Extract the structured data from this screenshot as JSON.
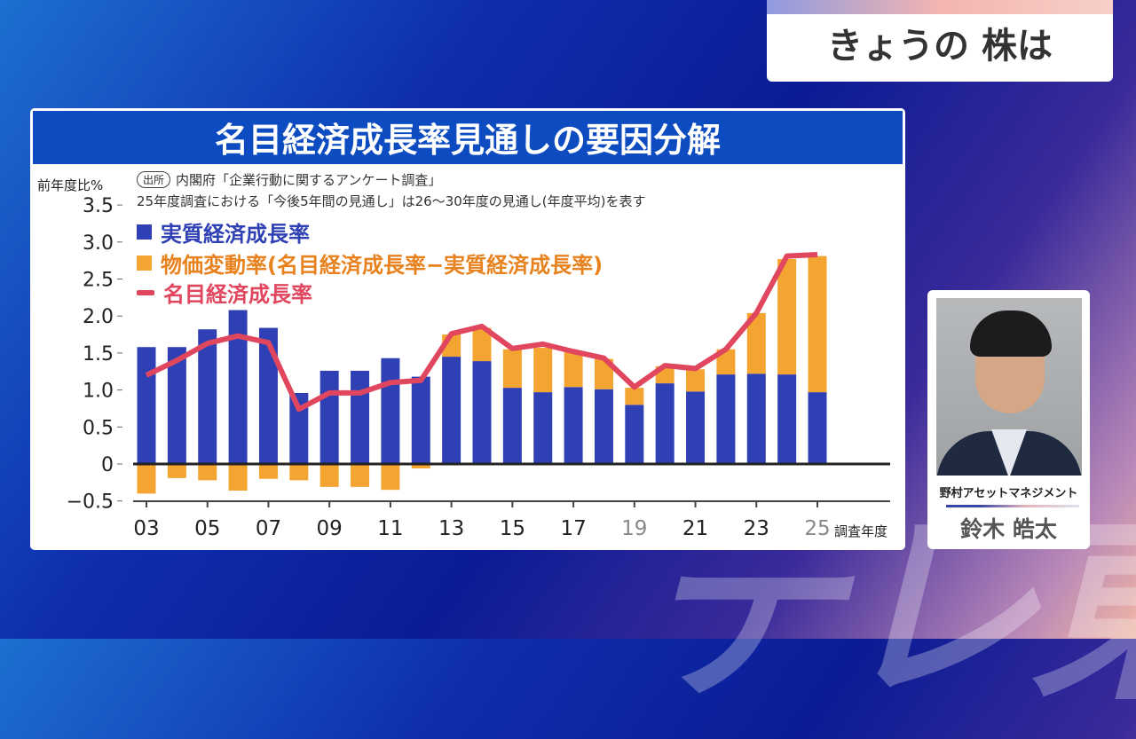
{
  "header": {
    "program": "きょうの 株は"
  },
  "watermark": "テレ東",
  "person": {
    "company": "野村アセットマネジメント",
    "name": "鈴木 皓太"
  },
  "chart_data": {
    "type": "bar",
    "title": "名目経済成長率見通しの要因分解",
    "ylabel": "前年度比%",
    "xlabel": "調査年度",
    "source_badge": "出所",
    "source": "内閣府「企業行動に関するアンケート調査」",
    "note": "25年度調査における「今後5年間の見通し」は26〜30年度の見通し(年度平均)を表す",
    "ylim": [
      -0.5,
      3.5
    ],
    "yticks": [
      "3.5",
      "3.0",
      "2.5",
      "2.0",
      "1.5",
      "1.0",
      "0.5",
      "0",
      "−0.5"
    ],
    "ytick_values": [
      3.5,
      3.0,
      2.5,
      2.0,
      1.5,
      1.0,
      0.5,
      0,
      -0.5
    ],
    "categories": [
      "03",
      "04",
      "05",
      "06",
      "07",
      "08",
      "09",
      "10",
      "11",
      "12",
      "13",
      "14",
      "15",
      "16",
      "17",
      "18",
      "19",
      "20",
      "21",
      "22",
      "23",
      "24",
      "25"
    ],
    "xtick_labels": [
      "03",
      "05",
      "07",
      "09",
      "11",
      "13",
      "15",
      "17",
      "19",
      "21",
      "23",
      "25"
    ],
    "series": [
      {
        "name": "実質経済成長率",
        "type": "bar",
        "color": "#2f40b4",
        "values": [
          1.58,
          1.58,
          1.82,
          2.08,
          1.84,
          0.96,
          1.26,
          1.26,
          1.43,
          1.18,
          1.45,
          1.39,
          1.03,
          0.97,
          1.04,
          1.01,
          0.8,
          1.09,
          0.98,
          1.21,
          1.22,
          1.21,
          0.97
        ]
      },
      {
        "name": "物価変動率(名目経済成長率−実質経済成長率)",
        "type": "bar",
        "color": "#f4a431",
        "values": [
          -0.4,
          -0.19,
          -0.22,
          -0.36,
          -0.2,
          -0.22,
          -0.31,
          -0.31,
          -0.35,
          -0.06,
          0.3,
          0.45,
          0.52,
          0.6,
          0.47,
          0.41,
          0.23,
          0.23,
          0.3,
          0.34,
          0.82,
          1.56,
          1.84
        ]
      },
      {
        "name": "名目経済成長率",
        "type": "line",
        "color": "#e0475f",
        "values": [
          1.2,
          1.4,
          1.63,
          1.73,
          1.64,
          0.74,
          0.96,
          0.96,
          1.1,
          1.13,
          1.76,
          1.86,
          1.56,
          1.62,
          1.52,
          1.43,
          1.04,
          1.33,
          1.29,
          1.55,
          2.04,
          2.81,
          2.83
        ]
      }
    ],
    "legend": "top-left"
  }
}
